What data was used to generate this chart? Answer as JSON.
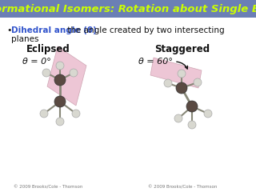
{
  "title": "Conformational Isomers: Rotation about Single Bonds",
  "title_color": "#CCFF00",
  "title_bg_color": "#6B7FB5",
  "title_fontsize": 9.5,
  "bullet_text_bold": "Dihedral angle (θ)",
  "bullet_text_rest": " the angle created by two intersecting",
  "bullet_text_line2": "planes",
  "bullet_color_bold": "#3355CC",
  "bullet_color_rest": "#111111",
  "bullet_fontsize": 7.5,
  "label_eclipsed": "Eclipsed",
  "label_staggered": "Staggered",
  "label_fontsize": 8.5,
  "eq_eclipsed": "θ = 0°",
  "eq_staggered": "θ = 60°",
  "eq_fontsize": 8,
  "bg_color": "#FFFFFF",
  "plane_color": "#E8B4C8",
  "plane_alpha": 0.75,
  "footer_text": "© 2009 Brooks/Cole - Thomson",
  "footer_fontsize": 4,
  "carbon_color": "#5A4A42",
  "h_color": "#D8D8D0",
  "bond_color": "#888878"
}
